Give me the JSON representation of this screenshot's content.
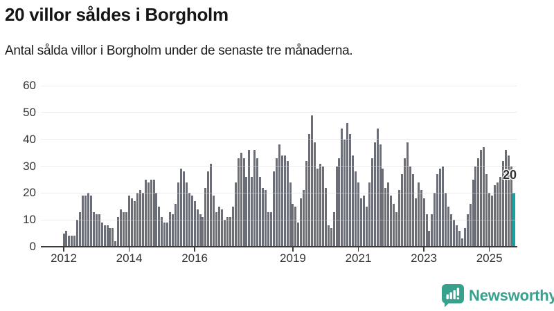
{
  "header": {
    "title": "20 villor såldes i Borgholm",
    "subtitle": "Antal sålda villor i Borgholm under de senaste tre månaderna."
  },
  "chart_data": {
    "type": "bar",
    "title": "20 villor såldes i Borgholm",
    "subtitle": "Antal sålda villor i Borgholm under de senaste tre månaderna.",
    "xlabel": "",
    "ylabel": "",
    "ylim": [
      0,
      60
    ],
    "y_ticks": [
      0,
      10,
      20,
      30,
      40,
      50,
      60
    ],
    "grid": true,
    "x_start": "2012",
    "x_frequency": "monthly",
    "x_ticks": [
      {
        "label": "2012",
        "index": 0
      },
      {
        "label": "2014",
        "index": 24
      },
      {
        "label": "2016",
        "index": 48
      },
      {
        "label": "2019",
        "index": 84
      },
      {
        "label": "2021",
        "index": 108
      },
      {
        "label": "2023",
        "index": 132
      },
      {
        "label": "2025",
        "index": 156
      }
    ],
    "values": [
      5,
      6,
      4,
      4,
      4,
      10,
      13,
      19,
      19,
      20,
      19,
      13,
      12,
      12,
      9,
      8,
      8,
      7,
      7,
      2,
      11,
      14,
      13,
      13,
      19,
      18,
      17,
      20,
      21,
      20,
      25,
      24,
      25,
      25,
      20,
      15,
      11,
      9,
      9,
      13,
      12,
      16,
      24,
      29,
      28,
      24,
      20,
      19,
      17,
      14,
      12,
      11,
      22,
      28,
      31,
      19,
      13,
      15,
      14,
      10,
      11,
      11,
      15,
      24,
      33,
      35,
      33,
      26,
      36,
      26,
      36,
      33,
      26,
      22,
      21,
      13,
      13,
      28,
      33,
      38,
      34,
      34,
      32,
      24,
      16,
      15,
      9,
      18,
      21,
      32,
      42,
      49,
      39,
      29,
      31,
      30,
      22,
      8,
      7,
      13,
      30,
      33,
      44,
      40,
      46,
      42,
      34,
      28,
      24,
      18,
      19,
      15,
      24,
      33,
      39,
      44,
      38,
      29,
      22,
      24,
      19,
      16,
      13,
      21,
      27,
      33,
      39,
      30,
      27,
      18,
      24,
      21,
      18,
      12,
      6,
      12,
      20,
      27,
      29,
      30,
      20,
      15,
      12,
      10,
      8,
      6,
      3,
      7,
      12,
      16,
      25,
      30,
      33,
      36,
      37,
      27,
      20,
      19,
      23,
      24,
      26,
      32,
      36,
      34,
      30,
      20
    ],
    "highlight_last_bar": true,
    "last_value_label": "20"
  },
  "branding": {
    "name": "Newsworthy"
  },
  "colors": {
    "bar": "#6b6e76",
    "highlight": "#16a1a1",
    "brand": "#38a18e",
    "grid": "#e3e3e3",
    "axis": "#3a3a3a",
    "label": "#333333"
  }
}
